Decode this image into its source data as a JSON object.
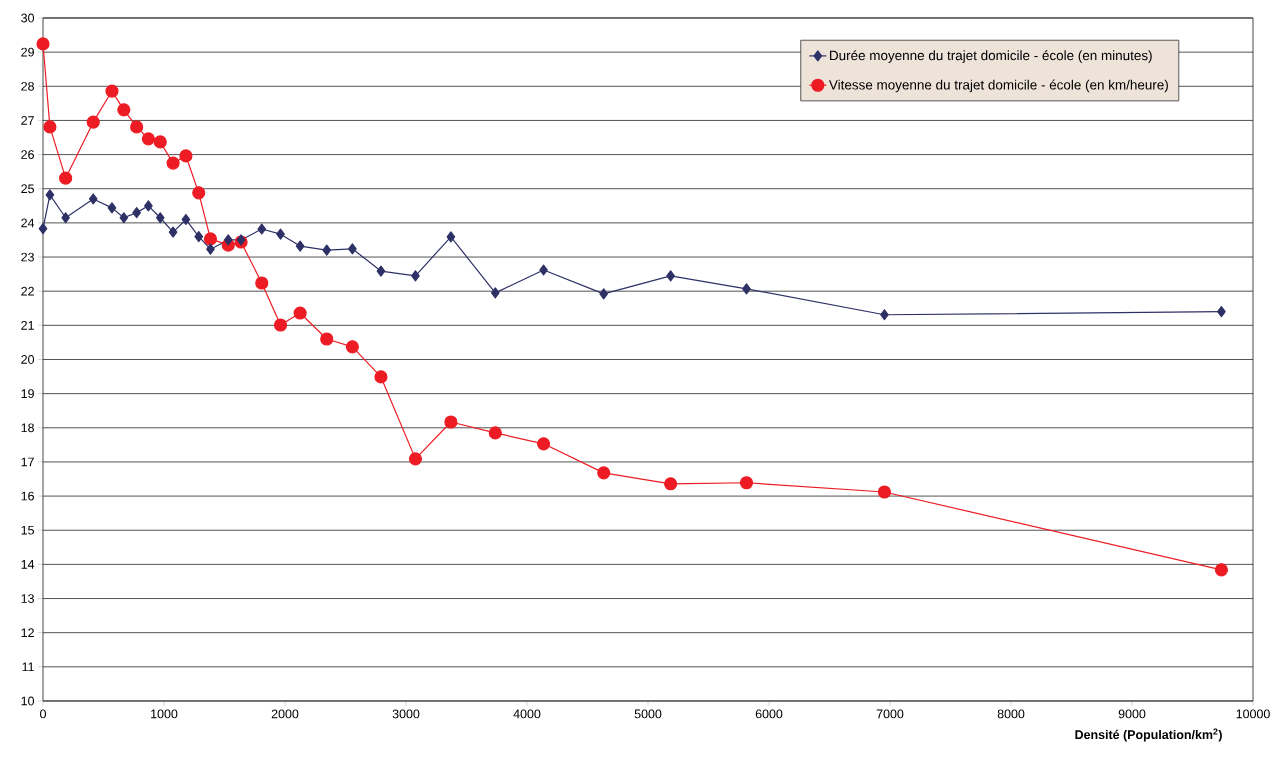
{
  "chart_data": {
    "type": "line",
    "xlabel": "**Densité (Population/km$^{2}$)**",
    "xlim": [
      0,
      10000
    ],
    "ylim": [
      10,
      30
    ],
    "xticks": [
      0,
      1000,
      2000,
      3000,
      4000,
      5000,
      6000,
      7000,
      8000,
      9000,
      10000
    ],
    "yticks": [
      10,
      11,
      12,
      13,
      14,
      15,
      16,
      17,
      18,
      19,
      20,
      21,
      22,
      23,
      24,
      25,
      26,
      27,
      28,
      29,
      30
    ],
    "grid": "y",
    "legend": "top right",
    "x": [
      0,
      57,
      187,
      415,
      570,
      668,
      774,
      871,
      969,
      1075,
      1181,
      1287,
      1384,
      1531,
      1637,
      1808,
      1963,
      2125,
      2345,
      2557,
      2793,
      3078,
      3371,
      3738,
      4137,
      4634,
      5187,
      5814,
      6954,
      9739
    ],
    "series": [
      {
        "name": "Durée moyenne du trajet domicile - école (en minutes)",
        "color": "#2e3166",
        "marker": "diamond",
        "values": [
          23.83,
          24.82,
          24.15,
          24.7,
          24.44,
          24.15,
          24.3,
          24.5,
          24.15,
          23.73,
          24.1,
          23.6,
          23.23,
          23.5,
          23.5,
          23.82,
          23.67,
          23.32,
          23.2,
          23.24,
          22.59,
          22.45,
          23.59,
          21.95,
          22.62,
          21.92,
          22.45,
          22.07,
          21.31,
          21.4
        ]
      },
      {
        "name": "Vitesse moyenne du trajet domicile - école (en km/heure)",
        "color": "#ed1c24",
        "marker": "circle",
        "values": [
          29.24,
          26.81,
          25.31,
          26.95,
          27.86,
          27.31,
          26.81,
          26.46,
          26.37,
          25.75,
          25.96,
          24.88,
          23.53,
          23.35,
          23.44,
          22.24,
          21.01,
          21.36,
          20.6,
          20.37,
          19.49,
          17.09,
          18.17,
          17.85,
          17.53,
          16.68,
          16.36,
          16.39,
          16.12,
          13.84
        ]
      }
    ]
  }
}
